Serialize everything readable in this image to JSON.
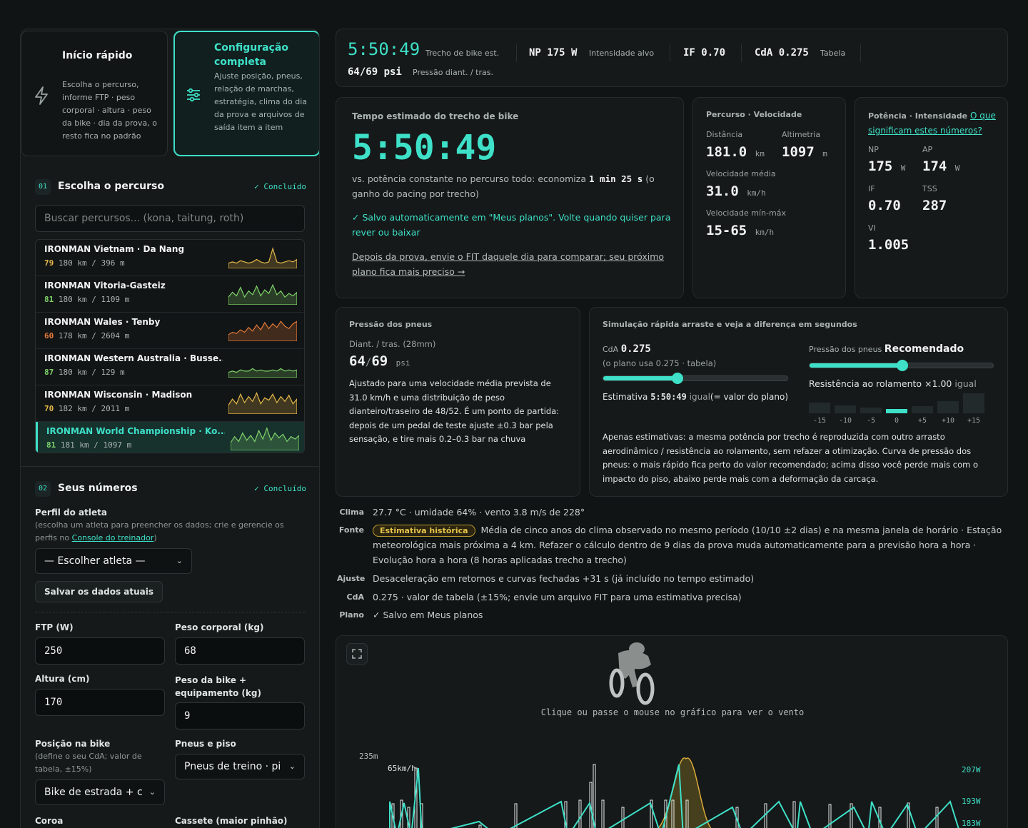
{
  "quick_start": {
    "title": "Início rápido",
    "description": "Escolha o percurso, informe FTP · peso corporal · altura · peso da bike · dia da prova, o resto fica no padrão"
  },
  "full_setup": {
    "title": "Configuração completa",
    "description": "Ajuste posição, pneus, relação de marchas, estratégia, clima do dia da prova e arquivos de saída item a item"
  },
  "step1": {
    "num": "01",
    "title": "Escolha o percurso",
    "status": "✓ Concluído",
    "search_placeholder": "Buscar percursos... (kona, taitung, roth)",
    "races": [
      {
        "name": "IRONMAN Vietnam · Da Nang",
        "score": "79",
        "meta": "180 km / 396 m",
        "color": "#e5b84a"
      },
      {
        "name": "IRONMAN Vitoria-Gasteiz",
        "score": "81",
        "meta": "180 km / 1109 m",
        "color": "#7fd36a"
      },
      {
        "name": "IRONMAN Wales · Tenby",
        "score": "60",
        "meta": "178 km / 2604 m",
        "color": "#e57a3a"
      },
      {
        "name": "IRONMAN Western Australia · Busse...",
        "score": "87",
        "meta": "180 km / 129 m",
        "color": "#7fd36a"
      },
      {
        "name": "IRONMAN Wisconsin · Madison",
        "score": "70",
        "meta": "182 km / 2011 m",
        "color": "#e5b84a"
      },
      {
        "name": "IRONMAN World Championship · Ko...",
        "score": "81",
        "meta": "181 km / 1097 m",
        "color": "#7fd36a"
      }
    ]
  },
  "step2": {
    "num": "02",
    "title": "Seus números",
    "status": "✓ Concluído",
    "athlete_profile_label": "Perfil do atleta",
    "athlete_profile_help": "(escolha um atleta para preencher os dados; crie e gerencie os perfis no",
    "athlete_profile_link": "Console do treinador",
    "athlete_profile_close": ")",
    "athlete_select": "— Escolher atleta —",
    "save_button": "Salvar os dados atuais",
    "ftp_label": "FTP  (W)",
    "ftp_value": "250",
    "weight_label": "Peso corporal (kg)",
    "weight_value": "68",
    "height_label": "Altura (cm)",
    "height_value": "170",
    "bike_weight_label": "Peso da bike + equipamento (kg)",
    "bike_weight_value": "9",
    "position_label": "Posição na bike",
    "position_help": "(define o seu CdA; valor de tabela, ±15%)",
    "position_value": "Bike de estrada + c",
    "tires_label": "Pneus e piso",
    "tires_value": "Pneus de treino · pi",
    "chainring_label": "Coroa",
    "cassette_label": "Cassete (maior pinhão)"
  },
  "topbar": {
    "time": "5:50:49",
    "time_caption": "Trecho de bike est.",
    "np": "NP 175 W",
    "np_caption": "Intensidade alvo",
    "if": "IF 0.70",
    "cda": "CdA 0.275",
    "cda_caption": "Tabela",
    "pressure": "64/69 psi",
    "pressure_caption": "Pressão diant. / tras."
  },
  "estimate": {
    "title": "Tempo estimado do trecho de bike",
    "time": "5:50:49",
    "comparison_prefix": "vs. potência constante no percurso todo: economiza",
    "comparison_value": "1 min 25 s",
    "comparison_suffix": "(o ganho do pacing por trecho)",
    "saved": "✓ Salvo automaticamente em \"Meus planos\". Volte quando quiser para rever ou baixar",
    "fit_link": "Depois da prova, envie o FIT daquele dia para comparar; seu próximo plano fica mais preciso →"
  },
  "route": {
    "title": "Percurso · Velocidade",
    "distance_label": "Distância",
    "distance": "181.0",
    "distance_unit": "km",
    "elevation_label": "Altimetria",
    "elevation": "1097",
    "elevation_unit": "m",
    "avg_speed_label": "Velocidade média",
    "avg_speed": "31.0",
    "speed_unit": "km/h",
    "range_label": "Velocidade mín-máx",
    "range": "15-65",
    "range_unit": "km/h"
  },
  "power": {
    "title": "Potência · Intensidade",
    "help_link": "O que significam estes números?",
    "np_label": "NP",
    "np": "175",
    "np_unit": "W",
    "ap_label": "AP",
    "ap": "174",
    "ap_unit": "W",
    "if_label": "IF",
    "if": "0.70",
    "tss_label": "TSS",
    "tss": "287",
    "vi_label": "VI",
    "vi": "1.005"
  },
  "tires": {
    "title": "Pressão dos pneus",
    "sub": "Diant. / tras. (28mm)",
    "front": "64",
    "rear": "69",
    "unit": "psi",
    "text": "Ajustado para uma velocidade média prevista de 31.0 km/h e uma distribuição de peso dianteiro/traseiro de 48/52. É um ponto de partida: depois de um pedal de teste ajuste ±0.3 bar pela sensação, e tire mais 0.2–0.3 bar na chuva"
  },
  "simulation": {
    "title": "Simulação rápida arraste e veja a diferença em segundos",
    "cda_label": "CdA",
    "cda_value": "0.275",
    "cda_note": "(o plano usa 0.275 · tabela)",
    "cda_slider_fraction": 0.4,
    "estimate_label": "Estimativa",
    "estimate_time": "5:50:49",
    "estimate_equal": "igual",
    "estimate_note": "(= valor do plano)",
    "pressure_label": "Pressão dos pneus",
    "pressure_status": "Recomendado",
    "pressure_slider_fraction": 0.5,
    "rolling_label": "Resistência ao rolamento ×1.00",
    "rolling_equal": "igual",
    "bars": [
      {
        "label": "-15",
        "value": 0.45
      },
      {
        "label": "-10",
        "value": 0.3
      },
      {
        "label": "-5",
        "value": 0.15
      },
      {
        "label": "0",
        "value": 0.1
      },
      {
        "label": "+5",
        "value": 0.25
      },
      {
        "label": "+10",
        "value": 0.55
      },
      {
        "label": "+15",
        "value": 1.0
      }
    ],
    "note": "Apenas estimativas: a mesma potência por trecho é reproduzida com outro arrasto aerodinâmico / resistência ao rolamento, sem refazer a otimização. Curva de pressão dos pneus: o mais rápido fica perto do valor recomendado; acima disso você perde mais com o impacto do piso, abaixo perde mais com a deformação da carcaça."
  },
  "info": {
    "climate_key": "Clima",
    "climate": "27.7 °C · umidade 64% · vento 3.8 m/s de 228°",
    "source_key": "Fonte",
    "source_badge": "Estimativa histórica",
    "source": "Média de cinco anos do clima observado no mesmo período (10/10 ±2 dias) e na mesma janela de horário · Estação meteorológica mais próxima a 4 km. Refazer o cálculo dentro de 9 dias da prova muda automaticamente para a previsão hora a hora · Evolução hora a hora (8 horas aplicadas trecho a trecho)",
    "adjust_key": "Ajuste",
    "adjust": "Desaceleração em retornos e curvas fechadas +31 s (já incluído no tempo estimado)",
    "cda_key": "CdA",
    "cda": "0.275 · valor de tabela (±15%; envie um arquivo FIT para uma estimativa precisa)",
    "plan_key": "Plano",
    "plan": "✓ Salvo em Meus planos"
  },
  "chart": {
    "hint": "Clique ou passe o mouse no gráfico para ver o vento",
    "elev_label": "235m",
    "speed_label": "65km/h",
    "power_labels": [
      "207W",
      "193W",
      "183W"
    ]
  }
}
